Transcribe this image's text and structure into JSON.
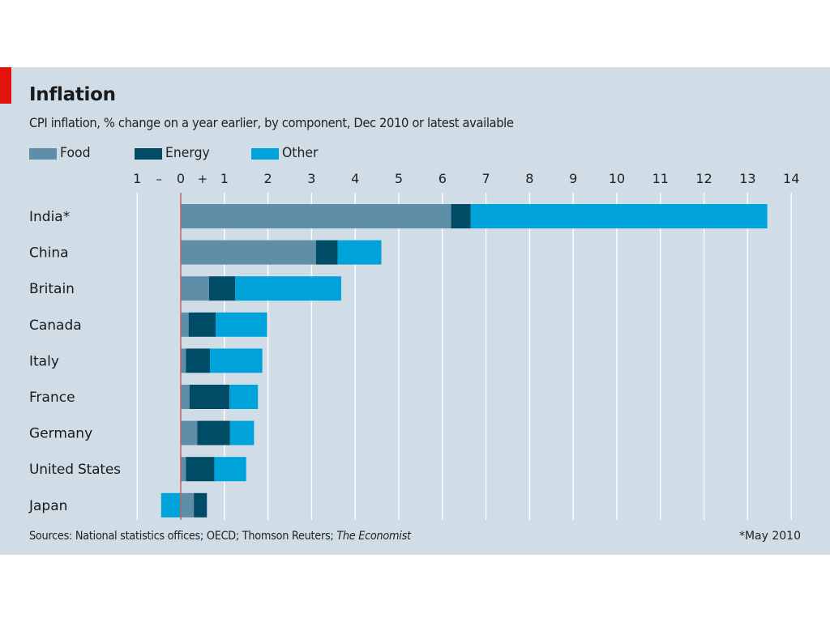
{
  "header": {
    "title": "Inflation",
    "subtitle": "CPI inflation, % change on a year earlier, by component, Dec 2010 or latest available"
  },
  "footer": {
    "source_prefix": "Sources: National statistics offices; OECD; Thomson Reuters;",
    "source_italic": "The Economist",
    "footnote": "*May 2010"
  },
  "colors": {
    "background": "#d0dde6",
    "accent": "#e3120b",
    "food": "#5f8fa8",
    "energy": "#004b66",
    "other": "#00a3d9",
    "zero_line": "#c0655f",
    "grid": "#ffffff"
  },
  "chart_data": {
    "type": "bar",
    "orientation": "horizontal",
    "stacked": true,
    "title": "Inflation",
    "subtitle": "CPI inflation, % change on a year earlier, by component, Dec 2010 or latest available",
    "categories": [
      "India*",
      "China",
      "Britain",
      "Canada",
      "Italy",
      "France",
      "Germany",
      "United States",
      "Japan"
    ],
    "series": [
      {
        "name": "Food",
        "color": "#5f8fa8",
        "values": [
          6.2,
          3.1,
          0.65,
          0.18,
          0.12,
          0.2,
          0.38,
          0.12,
          0.3
        ]
      },
      {
        "name": "Energy",
        "color": "#004b66",
        "values": [
          0.45,
          0.5,
          0.6,
          0.62,
          0.55,
          0.92,
          0.75,
          0.65,
          0.3
        ]
      },
      {
        "name": "Other",
        "color": "#00a3d9",
        "values": [
          6.8,
          1.0,
          2.43,
          1.18,
          1.2,
          0.65,
          0.55,
          0.73,
          -0.45
        ]
      }
    ],
    "xlim": [
      -1,
      14
    ],
    "xticks": [
      {
        "value": -1,
        "label": "1"
      },
      {
        "value": 0,
        "label": "0"
      },
      {
        "value": 1,
        "label": "1"
      },
      {
        "value": 2,
        "label": "2"
      },
      {
        "value": 3,
        "label": "3"
      },
      {
        "value": 4,
        "label": "4"
      },
      {
        "value": 5,
        "label": "5"
      },
      {
        "value": 6,
        "label": "6"
      },
      {
        "value": 7,
        "label": "7"
      },
      {
        "value": 8,
        "label": "8"
      },
      {
        "value": 9,
        "label": "9"
      },
      {
        "value": 10,
        "label": "10"
      },
      {
        "value": 11,
        "label": "11"
      },
      {
        "value": 12,
        "label": "12"
      },
      {
        "value": 13,
        "label": "13"
      },
      {
        "value": 14,
        "label": "14"
      }
    ],
    "sign_markers": [
      {
        "value": -0.5,
        "label": "–"
      },
      {
        "value": 0.5,
        "label": "+"
      }
    ],
    "grid": true,
    "xaxis_position": "top",
    "legend": "top-left"
  }
}
